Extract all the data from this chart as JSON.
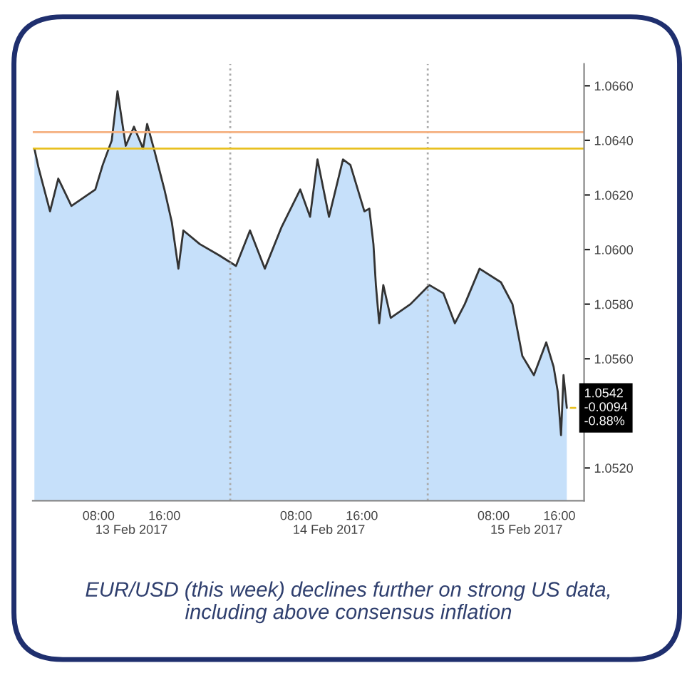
{
  "chart_data": {
    "type": "area",
    "x": [
      "2017-02-13T00:12",
      "2017-02-13T00:42",
      "2017-02-13T02:06",
      "2017-02-13T03:06",
      "2017-02-13T04:42",
      "2017-02-13T07:36",
      "2017-02-13T08:30",
      "2017-02-13T09:36",
      "2017-02-13T10:18",
      "2017-02-13T11:18",
      "2017-02-13T12:18",
      "2017-02-13T13:24",
      "2017-02-13T13:54",
      "2017-02-13T14:48",
      "2017-02-13T16:00",
      "2017-02-13T16:54",
      "2017-02-13T17:42",
      "2017-02-13T18:18",
      "2017-02-13T20:18",
      "2017-02-13T22:36",
      "2017-02-14T00:42",
      "2017-02-14T02:24",
      "2017-02-14T04:12",
      "2017-02-14T06:12",
      "2017-02-14T08:30",
      "2017-02-14T09:42",
      "2017-02-14T10:36",
      "2017-02-14T12:00",
      "2017-02-14T13:42",
      "2017-02-14T14:36",
      "2017-02-14T16:18",
      "2017-02-14T16:54",
      "2017-02-14T17:24",
      "2017-02-14T17:42",
      "2017-02-14T18:06",
      "2017-02-14T18:36",
      "2017-02-14T19:30",
      "2017-02-14T21:54",
      "2017-02-15T00:12",
      "2017-02-15T01:54",
      "2017-02-15T03:18",
      "2017-02-15T04:30",
      "2017-02-15T06:18",
      "2017-02-15T08:54",
      "2017-02-15T10:18",
      "2017-02-15T11:30",
      "2017-02-15T12:54",
      "2017-02-15T14:24",
      "2017-02-15T15:18",
      "2017-02-15T15:48",
      "2017-02-15T16:12",
      "2017-02-15T16:30",
      "2017-02-15T16:54"
    ],
    "series": [
      {
        "color": "#333333",
        "values": [
          1.0637,
          1.063,
          1.0614,
          1.0626,
          1.0616,
          1.0622,
          1.0631,
          1.064,
          1.0658,
          1.0638,
          1.0645,
          1.0637,
          1.0646,
          1.0636,
          1.0622,
          1.061,
          1.0593,
          1.0607,
          1.0602,
          1.0598,
          1.0594,
          1.0607,
          1.0593,
          1.0608,
          1.0622,
          1.0612,
          1.0633,
          1.0612,
          1.0633,
          1.0631,
          1.0614,
          1.0615,
          1.0602,
          1.0587,
          1.0573,
          1.0587,
          1.0575,
          1.058,
          1.0587,
          1.0584,
          1.0573,
          1.058,
          1.0593,
          1.0588,
          1.058,
          1.0561,
          1.0554,
          1.0566,
          1.0557,
          1.0548,
          1.0532,
          1.0554,
          1.0542
        ]
      }
    ],
    "xlim": [
      "2017-02-13T00:00",
      "2017-02-15T19:00"
    ],
    "xticks": [
      {
        "value": "2017-02-13T08:00",
        "label": "08:00"
      },
      {
        "value": "2017-02-13T16:00",
        "label": "16:00"
      },
      {
        "value": "2017-02-14T08:00",
        "label": "08:00"
      },
      {
        "value": "2017-02-14T16:00",
        "label": "16:00"
      },
      {
        "value": "2017-02-15T08:00",
        "label": "08:00"
      },
      {
        "value": "2017-02-15T16:00",
        "label": "16:00"
      }
    ],
    "x2lim": [
      "2017-02-13T00:00",
      "2017-02-15T19:00"
    ],
    "x2ticks": [
      {
        "value": "2017-02-13T12:00",
        "label": "13 Feb 2017"
      },
      {
        "value": "2017-02-14T12:00",
        "label": "14 Feb 2017"
      },
      {
        "value": "2017-02-15T12:00",
        "label": "15 Feb 2017"
      }
    ],
    "ylim": [
      1.0508,
      1.0668
    ],
    "yticks": [
      {
        "value": 1.052,
        "label": "1.0520"
      },
      {
        "value": 1.054,
        "label": null
      },
      {
        "value": 1.056,
        "label": "1.0560"
      },
      {
        "value": 1.058,
        "label": "1.0580"
      },
      {
        "value": 1.06,
        "label": "1.0600"
      },
      {
        "value": 1.062,
        "label": "1.0620"
      },
      {
        "value": 1.064,
        "label": "1.0640"
      },
      {
        "value": 1.066,
        "label": "1.0660"
      }
    ],
    "ref_lines": [
      {
        "axis": "x",
        "value": "2017-02-14",
        "color": "#aaaaaa",
        "line_style": "dotted"
      },
      {
        "axis": "x",
        "value": "2017-02-15",
        "color": "#aaaaaa",
        "line_style": "dotted"
      },
      {
        "axis": "y",
        "value": 1.0643,
        "color": "#f5b080",
        "line_style": "solid"
      },
      {
        "axis": "y",
        "value": 1.0637,
        "color": "#e8c020",
        "line_style": "solid"
      }
    ],
    "annotations": [
      {
        "text": "1.0542\n-0.0094\n-0.88%",
        "x": "2017-02-15T16:54",
        "y": 1.0542
      },
      "EUR/USD (this week) declines further on strong US data,\nincluding above consensus inflation"
    ],
    "grid": false
  }
}
